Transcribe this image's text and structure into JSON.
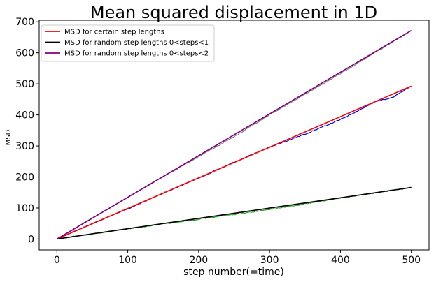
{
  "chart_data": {
    "type": "line",
    "title": "Mean squared displacement in 1D",
    "xlabel": "step number(=time)",
    "ylabel": "MSD",
    "xlim": [
      -25,
      525
    ],
    "ylim": [
      -35,
      705
    ],
    "xticks": [
      0,
      100,
      200,
      300,
      400,
      500
    ],
    "yticks": [
      0,
      100,
      200,
      300,
      400,
      500,
      600,
      700
    ],
    "grid": false,
    "legend_position": "top-left",
    "series": [
      {
        "name": "MSD for certain step lengths",
        "color": "#ff0000",
        "x": [
          0,
          500
        ],
        "y": [
          0,
          493
        ]
      },
      {
        "name": "MSD for random step lengths  0<steps<1",
        "color": "#000000",
        "x": [
          0,
          500
        ],
        "y": [
          0,
          166
        ]
      },
      {
        "name": "MSD for random step lengths  0<steps<2",
        "color": "#800080",
        "x": [
          0,
          500
        ],
        "y": [
          0,
          672
        ]
      }
    ],
    "simulated_series": [
      {
        "color": "#0000ff",
        "x": [
          0,
          50,
          100,
          150,
          200,
          250,
          300,
          350,
          400,
          450,
          475,
          500
        ],
        "y": [
          0,
          50,
          97,
          148,
          196,
          248,
          296,
          338,
          385,
          443,
          458,
          493
        ]
      },
      {
        "color": "#2ca02c",
        "x": [
          0,
          100,
          200,
          300,
          400,
          500
        ],
        "y": [
          0,
          33,
          64,
          95,
          132,
          166
        ]
      },
      {
        "color": "#808080",
        "x": [
          0,
          100,
          200,
          250,
          300,
          400,
          450,
          500
        ],
        "y": [
          0,
          135,
          266,
          330,
          400,
          533,
          602,
          672
        ]
      }
    ]
  }
}
